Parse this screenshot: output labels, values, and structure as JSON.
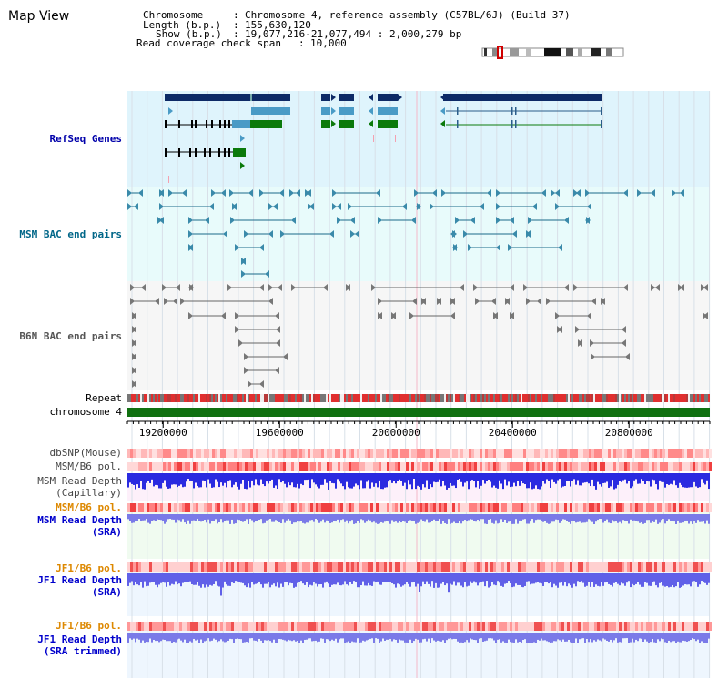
{
  "view_title": "Map View",
  "info": {
    "chromosome_label": "Chromosome",
    "chromosome_value": "Chromosome 4, reference assembly (C57BL/6J) (Build 37)",
    "length_label": "Length (b.p.)",
    "length_value": "155,630,120",
    "show_label": "Show (b.p.)",
    "show_value": "19,077,216-21,077,494 : 2,000,279 bp",
    "coverage_label": "Read coverage check span",
    "coverage_value": "10,000"
  },
  "view_range": {
    "start": 19077216,
    "end": 21077494
  },
  "tracks": {
    "refseq": {
      "label": "RefSeq Genes",
      "color": "#0000aa"
    },
    "msm_bac": {
      "label": "MSM BAC end pairs",
      "color": "#006688"
    },
    "b6n_bac": {
      "label": "B6N BAC end pairs",
      "color": "#555555"
    },
    "repeat": {
      "label": "Repeat"
    },
    "chromosome": {
      "label": "chromosome 4"
    },
    "dbsnp": {
      "label": "dbSNP(Mouse)"
    },
    "msm_pol": {
      "label": "MSM/B6 pol."
    },
    "msm_depth_cap": {
      "label1": "MSM Read Depth",
      "label2": "(Capillary)"
    },
    "msm_pol2": {
      "label": "MSM/B6 pol.",
      "color": "#dd8800"
    },
    "msm_depth_sra": {
      "label1": "MSM Read Depth",
      "label2": "(SRA)",
      "color": "#0000cc"
    },
    "jf1_pol": {
      "label": "JF1/B6 pol.",
      "color": "#dd8800"
    },
    "jf1_depth_sra": {
      "label1": "JF1 Read Depth",
      "label2": "(SRA)",
      "color": "#0000cc"
    },
    "jf1_pol2": {
      "label": "JF1/B6 pol.",
      "color": "#dd8800"
    },
    "jf1_depth_trim": {
      "label1": "JF1 Read Depth",
      "label2": "(SRA trimmed)",
      "color": "#0000cc"
    }
  },
  "axis": {
    "ticks": [
      19200000,
      19600000,
      20000000,
      20400000,
      20800000
    ],
    "tick_labels": [
      "19200000",
      "19600000",
      "20000000",
      "20400000",
      "20800000"
    ]
  },
  "colors": {
    "refseq_bg": "#dff4fc",
    "msm_bg": "#e8fbfb",
    "b6n_bg": "#f6f6f6",
    "gene_dark": "#0d2a66",
    "gene_light": "#4a9bc6",
    "gene_green": "#0b7a0b",
    "chromosome_bar": "#107010"
  }
}
